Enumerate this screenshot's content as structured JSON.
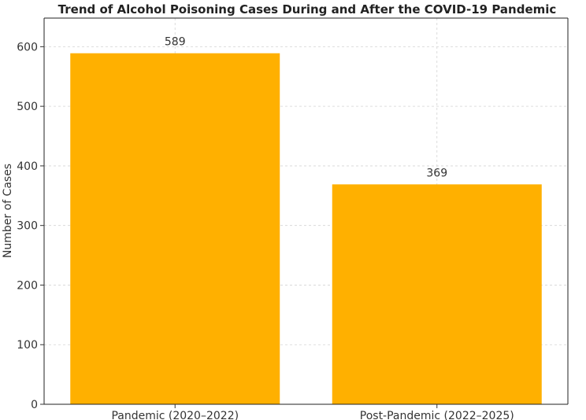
{
  "chart_data": {
    "type": "bar",
    "title": "Trend of Alcohol Poisoning Cases During and After the COVID-19 Pandemic",
    "xlabel": "",
    "ylabel": "Number of Cases",
    "categories": [
      "Pandemic (2020–2022)",
      "Post-Pandemic (2022–2025)"
    ],
    "values": [
      589,
      369
    ],
    "data_labels": [
      "589",
      "369"
    ],
    "ylim": [
      0,
      648
    ],
    "yticks": [
      0,
      100,
      200,
      300,
      400,
      500,
      600
    ],
    "grid": true,
    "legend": "none",
    "bar_color": "#FFB000"
  }
}
